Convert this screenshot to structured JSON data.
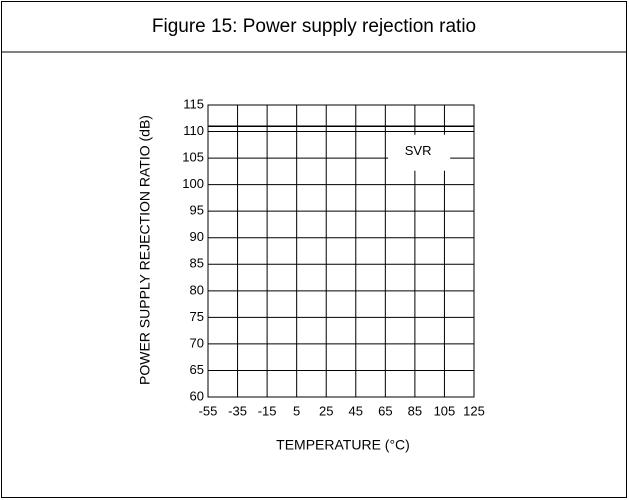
{
  "chart_data": {
    "type": "line",
    "title": "Figure 15: Power supply rejection ratio",
    "xlabel": "TEMPERATURE (°C)",
    "ylabel": "POWER SUPPLY REJECTION RATIO (dB)",
    "annotation": "SVR",
    "x": [
      -55,
      125
    ],
    "series": [
      {
        "name": "SVR",
        "color": "#000000",
        "values": [
          111,
          111
        ]
      }
    ],
    "xlim": [
      -55,
      125
    ],
    "xticks": [
      -55,
      -35,
      -15,
      5,
      25,
      45,
      65,
      85,
      105,
      125
    ],
    "ylim": [
      60,
      115
    ],
    "yticks": [
      60,
      65,
      70,
      75,
      80,
      85,
      90,
      95,
      100,
      105,
      110,
      115
    ],
    "grid": true
  }
}
